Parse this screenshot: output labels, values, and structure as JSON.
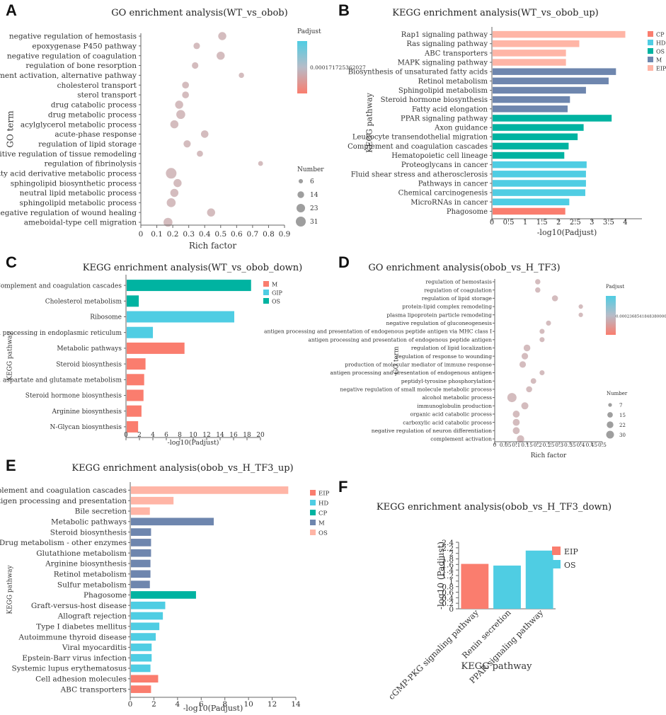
{
  "panels": [
    {
      "label": "A",
      "chart_data": {
        "type": "scatter",
        "title": "GO enrichment analysis(WT_vs_obob)",
        "xlabel": "Rich factor",
        "ylabel": "GO term",
        "xlim": [
          0,
          0.9
        ],
        "xticks": [
          "0",
          "0.1",
          "0.2",
          "0.3",
          "0.4",
          "0.5",
          "0.6",
          "0.7",
          "0.8",
          "0.9"
        ],
        "terms": [
          "negative regulation of hemostasis",
          "epoxygenase P450 pathway",
          "negative regulation of coagulation",
          "regulation of bone resorption",
          "complement activation, alternative pathway",
          "cholesterol transport",
          "sterol transport",
          "drug catabolic process",
          "drug metabolic process",
          "acylglycerol metabolic process",
          "acute-phase response",
          "regulation of lipid storage",
          "positive regulation of tissue remodeling",
          "regulation of fibrinolysis",
          "fatty acid derivative metabolic process",
          "sphingolipid biosynthetic process",
          "neutral lipid metabolic process",
          "sphingolipid metabolic process",
          "negative regulation of wound healing",
          "ameboidal-type cell migration"
        ],
        "x": [
          0.51,
          0.35,
          0.5,
          0.34,
          0.63,
          0.28,
          0.28,
          0.24,
          0.25,
          0.21,
          0.4,
          0.29,
          0.37,
          0.75,
          0.19,
          0.23,
          0.21,
          0.19,
          0.44,
          0.17
        ],
        "size": [
          14,
          9,
          14,
          9,
          6,
          10,
          10,
          14,
          17,
          14,
          12,
          11,
          8,
          5,
          24,
          14,
          14,
          17,
          14,
          17
        ],
        "legend_color_title": "Padjust",
        "legend_color_value": "0.000171725362027",
        "legend_size_title": "Number",
        "legend_size_values": [
          "6",
          "14",
          "23",
          "31"
        ]
      }
    },
    {
      "label": "B",
      "chart_data": {
        "type": "bar",
        "orientation": "horizontal",
        "title": "KEGG enrichment analysis(WT_vs_obob_up)",
        "xlabel": "-log10(Padjust)",
        "ylabel": "KEGG pathway",
        "xlim": [
          0,
          4.5
        ],
        "xticks": [
          "0",
          "0.5",
          "1",
          "1.5",
          "2",
          "2.5",
          "3",
          "3.5",
          "4"
        ],
        "categories": [
          "Rap1 signaling pathway",
          "Ras signaling pathway",
          "ABC transporters",
          "MAPK signaling pathway",
          "Biosynthesis of unsaturated fatty acids",
          "Retinol metabolism",
          "Sphingolipid metabolism",
          "Steroid hormone biosynthesis",
          "Fatty acid elongation",
          "PPAR signaling pathway",
          "Axon guidance",
          "Leukocyte transendothelial migration",
          "Complement and coagulation cascades",
          "Hematopoietic cell lineage",
          "Proteoglycans in cancer",
          "Fluid shear stress and atherosclerosis",
          "Pathways in cancer",
          "Chemical carcinogenesis",
          "MicroRNAs in cancer",
          "Phagosome"
        ],
        "values": [
          3.98,
          2.6,
          2.2,
          2.2,
          3.7,
          3.48,
          2.8,
          2.32,
          2.25,
          3.57,
          2.73,
          2.55,
          2.28,
          2.15,
          2.82,
          2.8,
          2.8,
          2.78,
          2.3,
          2.18
        ],
        "groups": [
          "EIP",
          "EIP",
          "EIP",
          "EIP",
          "M",
          "M",
          "M",
          "M",
          "M",
          "OS",
          "OS",
          "OS",
          "OS",
          "OS",
          "HD",
          "HD",
          "HD",
          "HD",
          "HD",
          "CP"
        ],
        "legend": [
          "CP",
          "HD",
          "OS",
          "M",
          "EIP"
        ]
      }
    },
    {
      "label": "C",
      "chart_data": {
        "type": "bar",
        "orientation": "horizontal",
        "title": "KEGG enrichment analysis(WT_vs_obob_down)",
        "xlabel": "-log10(Padjust)",
        "ylabel": "KEGG pathway",
        "xlim": [
          0,
          20
        ],
        "xticks": [
          "0",
          "2",
          "4",
          "6",
          "8",
          "10",
          "12",
          "14",
          "16",
          "18",
          "20"
        ],
        "categories": [
          "Complement and coagulation cascades",
          "Cholesterol metabolism",
          "Ribosome",
          "Protein processing in endoplasmic reticulum",
          "Metabolic pathways",
          "Steroid biosynthesis",
          "Alanine, aspartate and glutamate metabolism",
          "Steroid hormone biosynthesis",
          "Arginine biosynthesis",
          "N-Glycan biosynthesis"
        ],
        "values": [
          18.5,
          1.8,
          16.0,
          3.9,
          8.6,
          2.8,
          2.6,
          2.5,
          2.2,
          1.7
        ],
        "groups": [
          "OS",
          "OS",
          "GIP",
          "GIP",
          "M",
          "M",
          "M",
          "M",
          "M",
          "M"
        ],
        "legend": [
          "M",
          "GIP",
          "OS"
        ]
      }
    },
    {
      "label": "D",
      "chart_data": {
        "type": "scatter",
        "title": "GO enrichment analysis(obob_vs_H_TF3)",
        "xlabel": "Rich factor",
        "ylabel": "GO term",
        "xlim": [
          0,
          0.5
        ],
        "xticks": [
          "0",
          "0.05",
          "0.1",
          "0.15",
          "0.2",
          "0.25",
          "0.3",
          "0.35",
          "0.4",
          "0.45",
          "0.5"
        ],
        "terms": [
          "regulation of hemostasis",
          "regulation of coagulation",
          "regulation of lipid storage",
          "protein-lipid complex remodeling",
          "plasma lipoprotein particle remodeling",
          "negative regulation of gluconeogenesis",
          "antigen processing and presentation of endogenous peptide antigen via MHC class I",
          "antigen processing and presentation of endogenous peptide antigen",
          "regulation of lipid localization",
          "regulation of response to wounding",
          "production of molecular mediator of immune response",
          "antigen processing and presentation of endogenous antigen",
          "peptidyl-tyrosine phosphorylation",
          "negative regulation of small molecule metabolic process",
          "alcohol metabolic process",
          "immunoglobulin production",
          "organic acid catabolic process",
          "carboxylic acid catabolic process",
          "negative regulation of neuron differentiation",
          "complement activation"
        ],
        "x": [
          0.2,
          0.2,
          0.28,
          0.4,
          0.4,
          0.25,
          0.22,
          0.22,
          0.15,
          0.14,
          0.13,
          0.22,
          0.18,
          0.16,
          0.08,
          0.14,
          0.1,
          0.1,
          0.1,
          0.12
        ],
        "size": [
          10,
          10,
          13,
          7,
          7,
          9,
          9,
          9,
          16,
          15,
          15,
          9,
          11,
          13,
          30,
          18,
          17,
          17,
          17,
          19
        ],
        "legend_color_title": "Padjust",
        "legend_color_value": "0.000236854184838000001",
        "legend_size_title": "Number",
        "legend_size_values": [
          "7",
          "15",
          "22",
          "30"
        ]
      }
    },
    {
      "label": "E",
      "chart_data": {
        "type": "bar",
        "orientation": "horizontal",
        "title": "KEGG enrichment analysis(obob_vs_H_TF3_up)",
        "xlabel": "-log10(Padjust)",
        "ylabel": "KEGG pathway",
        "xlim": [
          0,
          14
        ],
        "xticks": [
          "0",
          "2",
          "4",
          "6",
          "8",
          "10",
          "12",
          "14"
        ],
        "categories": [
          "Complement and coagulation cascades",
          "Antigen processing and presentation",
          "Bile secretion",
          "Metabolic pathways",
          "Steroid biosynthesis",
          "Drug metabolism - other enzymes",
          "Glutathione metabolism",
          "Arginine biosynthesis",
          "Retinol metabolism",
          "Sulfur metabolism",
          "Phagosome",
          "Graft-versus-host disease",
          "Allograft rejection",
          "Type I diabetes mellitus",
          "Autoimmune thyroid disease",
          "Viral myocarditis",
          "Epstein-Barr virus infection",
          "Systemic lupus erythematosus",
          "Cell adhesion molecules",
          "ABC transporters"
        ],
        "values": [
          13.3,
          3.6,
          1.6,
          7.0,
          1.7,
          1.7,
          1.7,
          1.65,
          1.65,
          1.6,
          5.5,
          2.9,
          2.7,
          2.4,
          2.1,
          1.75,
          1.75,
          1.65,
          2.3,
          1.7
        ],
        "groups": [
          "OS",
          "OS",
          "OS",
          "M",
          "M",
          "M",
          "M",
          "M",
          "M",
          "M",
          "CP",
          "HD",
          "HD",
          "HD",
          "HD",
          "HD",
          "HD",
          "HD",
          "EIP",
          "EIP"
        ],
        "legend": [
          "EIP",
          "HD",
          "CP",
          "M",
          "OS"
        ]
      }
    },
    {
      "label": "F",
      "chart_data": {
        "type": "bar",
        "orientation": "vertical",
        "title": "KEGG enrichment analysis(obob_vs_H_TF3_down)",
        "xlabel": "KEGG pathway",
        "ylabel": "-log10 (Padjust)",
        "ylim": [
          0,
          2.4
        ],
        "yticks": [
          "0",
          "0.2",
          "0.4",
          "0.6",
          "0.8",
          "1",
          "1.2",
          "1.4",
          "1.6",
          "1.8",
          "2",
          "2.2",
          "2.4"
        ],
        "categories": [
          "cGMP-PKG signaling pathway",
          "Renin secretion",
          "PPAR signaling pathway"
        ],
        "values": [
          1.62,
          1.56,
          2.1
        ],
        "groups": [
          "EIP",
          "OS",
          "OS"
        ],
        "legend": [
          "EIP",
          "OS"
        ]
      }
    }
  ],
  "group_colors": {
    "CP": "#00b3a1",
    "HD": "#4fcde3",
    "OS": "#ffb5a6",
    "M": "#6e86ae",
    "EIP": "#fa7d6e",
    "GIP": "#4fcde3"
  },
  "panel_overrides": {
    "B": {
      "CP": "#fa7d6e",
      "HD": "#4fcde3",
      "OS": "#00b3a1",
      "M": "#6e86ae",
      "EIP": "#ffb5a6"
    },
    "C": {
      "M": "#fa7d6e",
      "GIP": "#4fcde3",
      "OS": "#00b3a1"
    },
    "E": {
      "EIP": "#fa7d6e",
      "HD": "#4fcde3",
      "CP": "#00b3a1",
      "M": "#6e86ae",
      "OS": "#ffb5a6"
    },
    "F": {
      "EIP": "#fa7d6e",
      "OS": "#4fcde3"
    }
  },
  "colors": {
    "bubble": "#d4bcbe",
    "gradient_top": "#4fcde3",
    "gradient_mid": "#b7bcc8",
    "gradient_bottom": "#fa7d6e"
  }
}
